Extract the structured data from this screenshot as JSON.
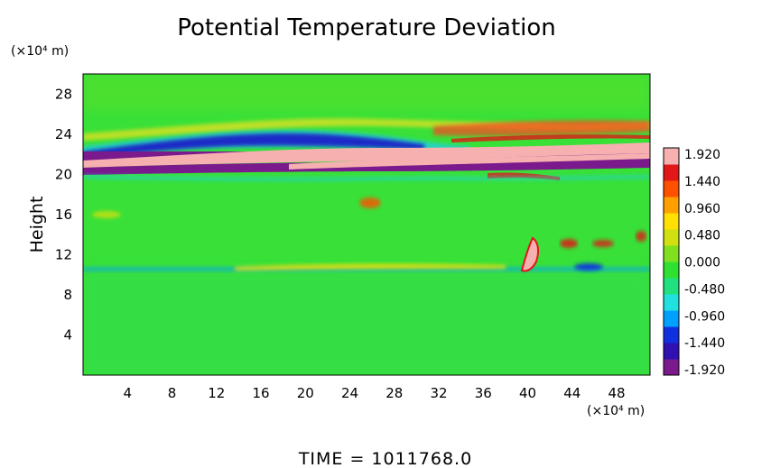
{
  "chart_data": {
    "type": "heatmap",
    "title": "Potential Temperature Deviation",
    "ylabel": "Height",
    "x_unit_label": "(×10⁴ m)",
    "y_unit_label": "(×10⁴ m)",
    "xlim": [
      0,
      51
    ],
    "ylim": [
      0,
      30
    ],
    "x_ticks": [
      "4",
      "8",
      "12",
      "16",
      "20",
      "24",
      "28",
      "32",
      "36",
      "40",
      "44",
      "48"
    ],
    "y_ticks": [
      "4",
      "8",
      "12",
      "16",
      "20",
      "24",
      "28"
    ],
    "colorbar": {
      "labels": [
        "1.920",
        "1.440",
        "0.960",
        "0.480",
        "0.000",
        "-0.480",
        "-0.960",
        "-1.440",
        "-1.920"
      ],
      "min": -1.92,
      "max": 1.92,
      "colors": [
        "#7a1a8c",
        "#3010b0",
        "#1030e0",
        "#00a0ff",
        "#20e0e0",
        "#20e080",
        "#30e030",
        "#80e020",
        "#d0e010",
        "#ffe000",
        "#ffa000",
        "#ff5000",
        "#e01818",
        "#f6b0b0"
      ]
    },
    "features": [
      {
        "name": "upper dipole band",
        "y_range": [
          19.5,
          23.5
        ],
        "description": "alternating purple/pink bands"
      },
      {
        "name": "lower cold line",
        "y_range": [
          10.3,
          10.8
        ]
      }
    ],
    "background_value": 0.0
  },
  "footer": {
    "time_label": "TIME = 1011768.0"
  }
}
